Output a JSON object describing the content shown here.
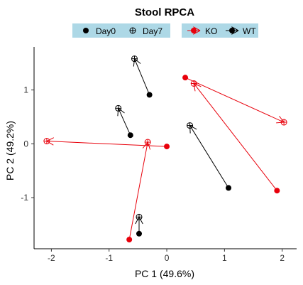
{
  "chart_data": {
    "type": "scatter",
    "title": "Stool RPCA",
    "xlabel": "PC 1 (49.6%)",
    "ylabel": "PC 2 (49.2%)",
    "xlim": [
      -2.3,
      2.25
    ],
    "ylim": [
      -1.95,
      1.8
    ],
    "x_ticks": [
      -2,
      -1,
      0,
      1,
      2
    ],
    "y_ticks": [
      -1,
      0,
      1
    ],
    "x_tick_labels": [
      "-2",
      "-1",
      "0",
      "1",
      "2"
    ],
    "y_tick_labels": [
      "-1",
      "0",
      "1"
    ],
    "grid": false,
    "legend_placement": "top",
    "legend": {
      "timepoints": [
        "Day0",
        "Day7"
      ],
      "groups": [
        "KO",
        "WT"
      ]
    },
    "colors": {
      "KO": "#e8000b",
      "WT": "#000000",
      "legend_bg": "#add8e6"
    },
    "series": [
      {
        "name": "KO",
        "pairs": [
          {
            "day0": [
              -0.65,
              -1.78
            ],
            "day7": [
              -0.33,
              0.03
            ]
          },
          {
            "day0": [
              0.0,
              -0.05
            ],
            "day7": [
              -2.08,
              0.05
            ]
          },
          {
            "day0": [
              0.32,
              1.23
            ],
            "day7": [
              2.03,
              0.4
            ]
          },
          {
            "day0": [
              1.91,
              -0.87
            ],
            "day7": [
              0.47,
              1.12
            ]
          }
        ]
      },
      {
        "name": "WT",
        "pairs": [
          {
            "day0": [
              -0.3,
              0.91
            ],
            "day7": [
              -0.56,
              1.58
            ]
          },
          {
            "day0": [
              -0.63,
              0.16
            ],
            "day7": [
              -0.84,
              0.66
            ]
          },
          {
            "day0": [
              -0.48,
              -1.67
            ],
            "day7": [
              -0.48,
              -1.36
            ]
          },
          {
            "day0": [
              1.07,
              -0.82
            ],
            "day7": [
              0.4,
              0.34
            ]
          }
        ]
      }
    ]
  }
}
